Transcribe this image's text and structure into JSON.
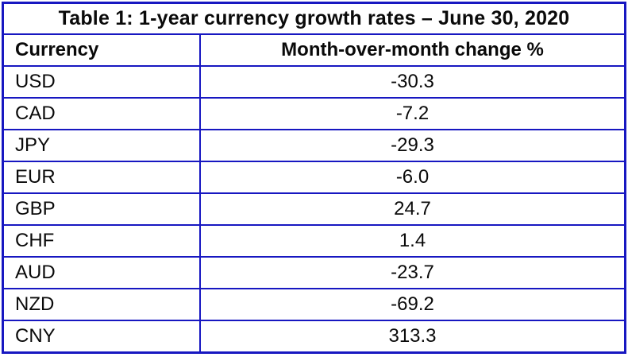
{
  "table": {
    "title": "Table 1: 1-year currency growth rates – June 30, 2020",
    "columns": {
      "currency": "Currency",
      "change": "Month-over-month change %"
    },
    "rows": [
      {
        "currency": "USD",
        "value": "-30.3"
      },
      {
        "currency": "CAD",
        "value": "-7.2"
      },
      {
        "currency": "JPY",
        "value": "-29.3"
      },
      {
        "currency": "EUR",
        "value": "-6.0"
      },
      {
        "currency": "GBP",
        "value": "24.7"
      },
      {
        "currency": "CHF",
        "value": "1.4"
      },
      {
        "currency": "AUD",
        "value": "-23.7"
      },
      {
        "currency": "NZD",
        "value": "-69.2"
      },
      {
        "currency": "CNY",
        "value": "313.3"
      }
    ],
    "border_color": "#1717c1",
    "text_color": "#0a0a0a"
  },
  "chart_data": {
    "type": "table",
    "title": "Table 1: 1-year currency growth rates – June 30, 2020",
    "categories": [
      "USD",
      "CAD",
      "JPY",
      "EUR",
      "GBP",
      "CHF",
      "AUD",
      "NZD",
      "CNY"
    ],
    "values": [
      -30.3,
      -7.2,
      -29.3,
      -6.0,
      24.7,
      1.4,
      -23.7,
      -69.2,
      313.3
    ],
    "xlabel": "Currency",
    "ylabel": "Month-over-month change %"
  }
}
